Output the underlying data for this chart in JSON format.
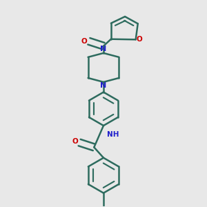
{
  "bg_color": "#e8e8e8",
  "bond_color": "#2d6b5e",
  "N_color": "#2020cc",
  "O_color": "#cc0000",
  "bond_width": 1.8,
  "figsize": [
    3.0,
    3.0
  ],
  "dpi": 100,
  "xlim": [
    0.15,
    0.85
  ],
  "ylim": [
    0.02,
    0.98
  ]
}
